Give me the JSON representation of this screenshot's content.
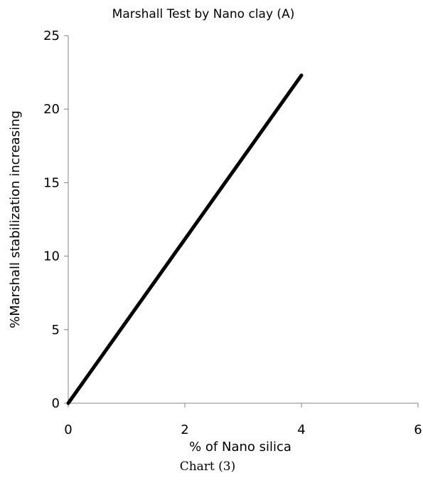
{
  "chart_data": {
    "type": "line",
    "title": "Marshall Test by Nano clay (A)",
    "xlabel": "% of Nano silica",
    "ylabel": "%Marshall stabilization increasing",
    "caption": "Chart (3)",
    "xlim": [
      0,
      6
    ],
    "ylim": [
      0,
      25
    ],
    "xticks": [
      0,
      2,
      4,
      6
    ],
    "yticks": [
      0,
      5,
      10,
      15,
      20,
      25
    ],
    "grid": false,
    "series": [
      {
        "x": [
          0,
          4
        ],
        "y": [
          0,
          22.3
        ],
        "color": "#000000"
      }
    ]
  }
}
